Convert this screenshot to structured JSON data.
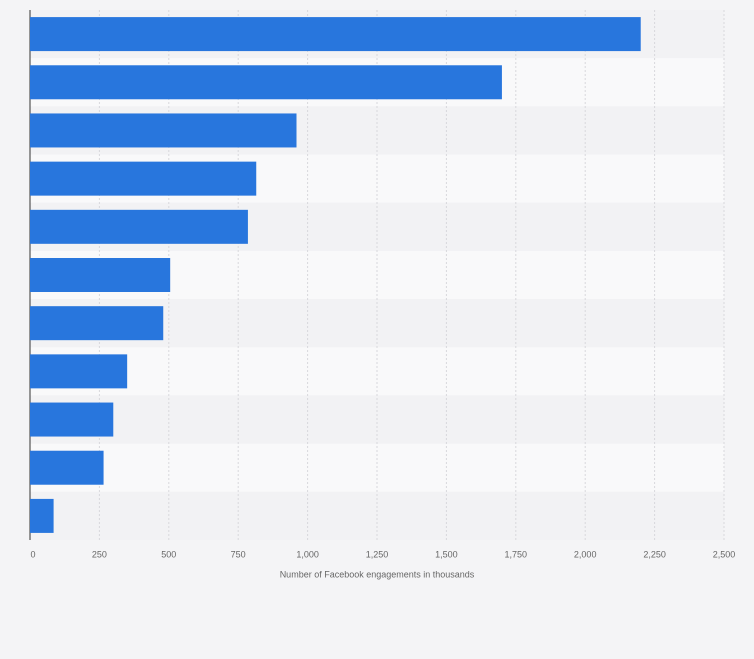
{
  "chart_data": {
    "type": "hbar",
    "x_label": "Number of Facebook engagements in thousands",
    "categories": [
      null,
      null,
      null,
      null,
      null,
      null,
      null,
      null,
      null,
      null,
      null
    ],
    "values": [
      2200,
      1700,
      960,
      815,
      785,
      505,
      480,
      350,
      300,
      265,
      85
    ],
    "color": "#2876dd",
    "xlim": [
      0,
      2500
    ],
    "xticks": [
      0,
      250,
      500,
      750,
      {
        "value": 1000,
        "label": "1,000"
      },
      {
        "value": 1250,
        "label": "1,250"
      },
      {
        "value": 1500,
        "label": "1,500"
      },
      {
        "value": 1750,
        "label": "1,750"
      },
      {
        "value": 2000,
        "label": "2,000"
      },
      {
        "value": 2250,
        "label": "2,250"
      },
      {
        "value": 2500,
        "label": "2,500"
      }
    ],
    "grid": true
  }
}
